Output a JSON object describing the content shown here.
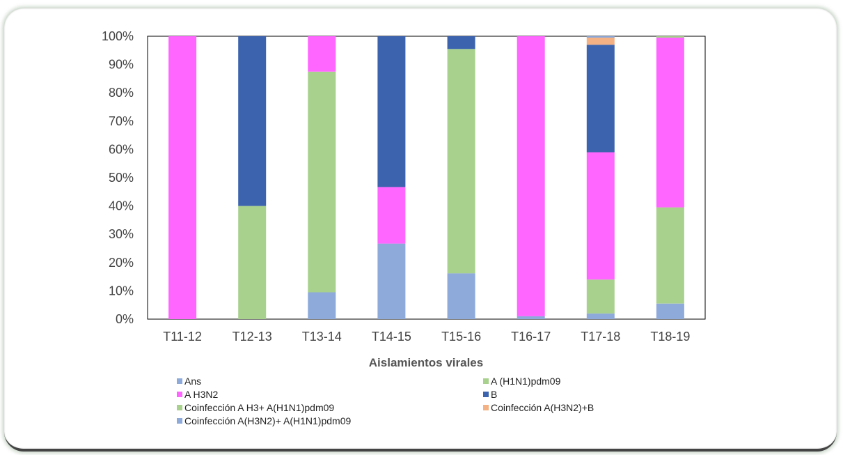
{
  "chart_data": {
    "type": "bar",
    "stacked": true,
    "categories": [
      "T11-12",
      "T12-13",
      "T13-14",
      "T14-15",
      "T15-16",
      "T16-17",
      "T17-18",
      "T18-19"
    ],
    "xlabel": "Aislamientos virales",
    "ylabel": "",
    "title": "",
    "ylim": [
      0,
      100
    ],
    "y_tick_labels": [
      "0%",
      "10%",
      "20%",
      "30%",
      "40%",
      "50%",
      "60%",
      "70%",
      "80%",
      "90%",
      "100%"
    ],
    "grid": false,
    "legend_position": "bottom",
    "series": [
      {
        "name": "Ans",
        "color": "#8eaadb",
        "values": [
          0,
          0,
          9.5,
          26.7,
          16.2,
          1,
          2,
          5.5
        ]
      },
      {
        "name": "A (H1N1)pdm09",
        "color": "#a9d18e",
        "values": [
          0,
          40,
          78,
          0,
          79.3,
          0,
          12,
          34
        ]
      },
      {
        "name": "A H3N2",
        "color": "#ff66ff",
        "values": [
          100,
          0,
          12.5,
          20,
          0,
          99,
          45,
          60
        ]
      },
      {
        "name": "B",
        "color": "#3c63ae",
        "values": [
          0,
          60,
          0,
          53.3,
          4.5,
          0,
          38,
          0
        ]
      },
      {
        "name": "Coinfección A H3+ A(H1N1)pdm09",
        "color": "#a9d18e",
        "values": [
          0,
          0,
          0,
          0,
          0,
          0,
          0,
          0.5
        ]
      },
      {
        "name": "Coinfección A(H3N2)+B",
        "color": "#f4b183",
        "values": [
          0,
          0,
          0,
          0,
          0,
          0,
          2.5,
          0
        ]
      },
      {
        "name": "Coinfección A(H3N2)+ A(H1N1)pdm09",
        "color": "#8eaadb",
        "values": [
          0,
          0,
          0,
          0,
          0,
          0,
          0.5,
          0
        ]
      }
    ],
    "stack_order": [
      "Ans",
      "A (H1N1)pdm09",
      "A H3N2",
      "B",
      "Coinfección A(H3N2)+B",
      "Coinfección A(H3N2)+ A(H1N1)pdm09",
      "Coinfección A H3+ A(H1N1)pdm09"
    ],
    "legend_order": [
      "Ans",
      "A (H1N1)pdm09",
      "A H3N2",
      "B",
      "Coinfección A H3+ A(H1N1)pdm09",
      "Coinfección A(H3N2)+B",
      "Coinfección A(H3N2)+ A(H1N1)pdm09"
    ]
  }
}
